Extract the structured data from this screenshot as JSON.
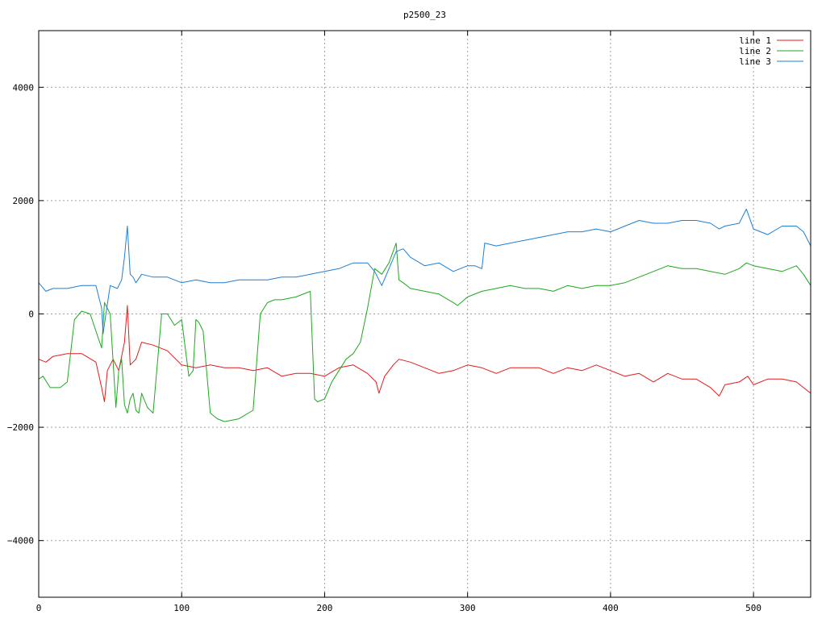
{
  "chart_data": {
    "type": "line",
    "title": "p2500_23",
    "xlabel": "",
    "ylabel": "",
    "xlim": [
      0,
      540
    ],
    "ylim": [
      -5000,
      5000
    ],
    "x_ticks": [
      0,
      100,
      200,
      300,
      400,
      500
    ],
    "y_ticks": [
      -4000,
      -2000,
      0,
      2000,
      4000
    ],
    "y_tick_labels": [
      "−4000",
      "−2000",
      "0",
      "2000",
      "4000"
    ],
    "grid": true,
    "legend_position": "top-right",
    "series": [
      {
        "name": "line 1",
        "color": "#e41a1c",
        "x": [
          0,
          5,
          10,
          20,
          30,
          40,
          44,
          46,
          48,
          52,
          56,
          60,
          62,
          64,
          68,
          72,
          80,
          90,
          100,
          110,
          120,
          130,
          140,
          150,
          160,
          170,
          180,
          190,
          200,
          210,
          220,
          230,
          236,
          238,
          242,
          248,
          252,
          260,
          270,
          280,
          290,
          300,
          310,
          320,
          330,
          340,
          350,
          360,
          370,
          380,
          390,
          400,
          410,
          420,
          430,
          440,
          450,
          460,
          470,
          476,
          480,
          490,
          496,
          500,
          510,
          520,
          530,
          535,
          540
        ],
        "y": [
          -800,
          -850,
          -750,
          -700,
          -700,
          -850,
          -1300,
          -1550,
          -1000,
          -800,
          -1000,
          -500,
          150,
          -900,
          -800,
          -500,
          -550,
          -650,
          -900,
          -950,
          -900,
          -950,
          -950,
          -1000,
          -950,
          -1100,
          -1050,
          -1050,
          -1100,
          -950,
          -900,
          -1050,
          -1200,
          -1400,
          -1100,
          -900,
          -800,
          -850,
          -950,
          -1050,
          -1000,
          -900,
          -950,
          -1050,
          -950,
          -950,
          -950,
          -1050,
          -950,
          -1000,
          -900,
          -1000,
          -1100,
          -1050,
          -1200,
          -1050,
          -1150,
          -1150,
          -1300,
          -1450,
          -1250,
          -1200,
          -1100,
          -1250,
          -1150,
          -1150,
          -1200,
          -1300,
          -1400
        ]
      },
      {
        "name": "line 2",
        "color": "#1ea81e",
        "x": [
          0,
          3,
          8,
          15,
          20,
          25,
          30,
          36,
          40,
          44,
          46,
          50,
          54,
          56,
          58,
          60,
          62,
          64,
          66,
          68,
          70,
          72,
          76,
          80,
          86,
          90,
          95,
          100,
          105,
          108,
          110,
          112,
          115,
          120,
          125,
          130,
          140,
          150,
          155,
          160,
          165,
          170,
          180,
          190,
          193,
          195,
          200,
          205,
          210,
          215,
          220,
          225,
          230,
          235,
          240,
          245,
          250,
          252,
          255,
          260,
          270,
          280,
          290,
          293,
          300,
          310,
          320,
          330,
          340,
          350,
          360,
          370,
          380,
          390,
          400,
          410,
          420,
          430,
          440,
          450,
          460,
          470,
          480,
          490,
          495,
          500,
          510,
          520,
          530,
          535,
          540
        ],
        "y": [
          -1150,
          -1100,
          -1300,
          -1300,
          -1200,
          -100,
          50,
          0,
          -300,
          -600,
          200,
          0,
          -1650,
          -1000,
          -800,
          -1600,
          -1750,
          -1500,
          -1400,
          -1700,
          -1750,
          -1400,
          -1650,
          -1750,
          0,
          0,
          -200,
          -100,
          -1100,
          -1000,
          -100,
          -150,
          -300,
          -1750,
          -1850,
          -1900,
          -1850,
          -1700,
          0,
          200,
          250,
          250,
          300,
          400,
          -1500,
          -1550,
          -1500,
          -1200,
          -1000,
          -800,
          -700,
          -500,
          100,
          800,
          700,
          900,
          1250,
          600,
          550,
          450,
          400,
          350,
          200,
          150,
          300,
          400,
          450,
          500,
          450,
          450,
          400,
          500,
          450,
          500,
          500,
          550,
          650,
          750,
          850,
          800,
          800,
          750,
          700,
          800,
          900,
          850,
          800,
          750,
          850,
          700,
          500
        ]
      },
      {
        "name": "line 3",
        "color": "#1f7fd1",
        "x": [
          0,
          5,
          10,
          20,
          30,
          40,
          44,
          45,
          47,
          50,
          55,
          58,
          60,
          62,
          64,
          66,
          68,
          72,
          80,
          90,
          100,
          110,
          120,
          130,
          140,
          150,
          160,
          170,
          180,
          190,
          200,
          210,
          220,
          230,
          235,
          240,
          245,
          250,
          255,
          260,
          270,
          280,
          290,
          300,
          305,
          310,
          312,
          320,
          330,
          340,
          350,
          360,
          370,
          380,
          390,
          400,
          405,
          410,
          420,
          430,
          440,
          450,
          460,
          470,
          476,
          480,
          490,
          495,
          500,
          510,
          520,
          530,
          535,
          540
        ],
        "y": [
          550,
          400,
          450,
          450,
          500,
          500,
          100,
          -350,
          0,
          500,
          450,
          600,
          1000,
          1550,
          700,
          650,
          550,
          700,
          650,
          650,
          550,
          600,
          550,
          550,
          600,
          600,
          600,
          650,
          650,
          700,
          750,
          800,
          900,
          900,
          750,
          500,
          800,
          1100,
          1150,
          1000,
          850,
          900,
          750,
          850,
          850,
          800,
          1250,
          1200,
          1250,
          1300,
          1350,
          1400,
          1450,
          1450,
          1500,
          1450,
          1500,
          1550,
          1650,
          1600,
          1600,
          1650,
          1650,
          1600,
          1500,
          1550,
          1600,
          1850,
          1500,
          1400,
          1550,
          1550,
          1450,
          1200
        ]
      }
    ]
  }
}
